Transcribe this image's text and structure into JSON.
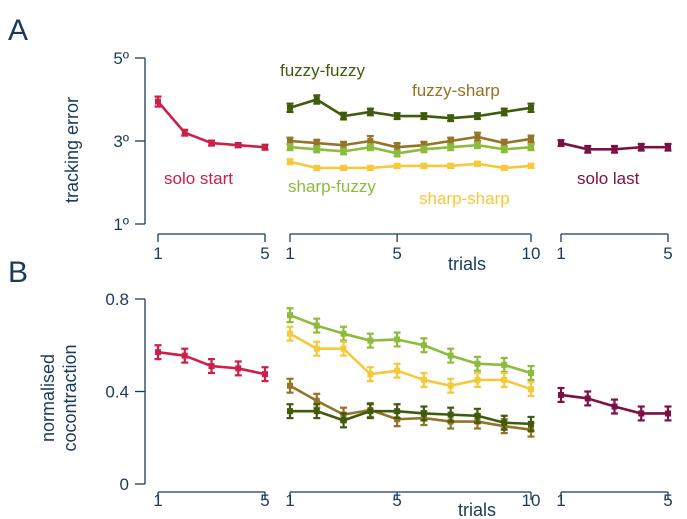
{
  "colors": {
    "axis": "#1b3a5c",
    "solo_start": "#cc1f4a",
    "fuzzy_fuzzy": "#3f5c0c",
    "fuzzy_sharp": "#957327",
    "sharp_fuzzy": "#8dbb3c",
    "sharp_sharp": "#f6c93a",
    "solo_last": "#7b1044"
  },
  "chart_data": [
    {
      "type": "line",
      "panel": "A",
      "ylabel": "tracking error",
      "xlabel": "trials",
      "ylim": [
        1,
        5
      ],
      "yticks": [
        "1º",
        "3º",
        "5º"
      ],
      "grid": false,
      "segments": [
        {
          "name": "solo start",
          "x": [
            1,
            2,
            3,
            4,
            5
          ],
          "xticks": [
            "1",
            "5"
          ],
          "series": [
            {
              "name": "solo start",
              "color_key": "solo_start",
              "values": [
                3.95,
                3.2,
                2.95,
                2.9,
                2.85
              ],
              "errors": [
                0.12,
                0.07,
                0.06,
                0.05,
                0.06
              ]
            }
          ]
        },
        {
          "name": "pairs",
          "x": [
            1,
            2,
            3,
            4,
            5,
            6,
            7,
            8,
            9,
            10
          ],
          "xticks": [
            "1",
            "5",
            "10"
          ],
          "series": [
            {
              "name": "fuzzy-fuzzy",
              "color_key": "fuzzy_fuzzy",
              "values": [
                3.8,
                4.0,
                3.6,
                3.7,
                3.6,
                3.6,
                3.55,
                3.6,
                3.7,
                3.8
              ],
              "errors": [
                0.1,
                0.1,
                0.08,
                0.08,
                0.07,
                0.07,
                0.07,
                0.07,
                0.08,
                0.1
              ]
            },
            {
              "name": "fuzzy-sharp",
              "color_key": "fuzzy_sharp",
              "values": [
                3.0,
                2.95,
                2.9,
                3.0,
                2.85,
                2.9,
                3.0,
                3.1,
                2.95,
                3.05
              ],
              "errors": [
                0.08,
                0.08,
                0.08,
                0.12,
                0.1,
                0.08,
                0.08,
                0.1,
                0.08,
                0.08
              ]
            },
            {
              "name": "sharp-fuzzy",
              "color_key": "sharp_fuzzy",
              "values": [
                2.85,
                2.8,
                2.75,
                2.85,
                2.7,
                2.8,
                2.85,
                2.9,
                2.8,
                2.85
              ],
              "errors": [
                0.07,
                0.07,
                0.07,
                0.07,
                0.07,
                0.07,
                0.07,
                0.07,
                0.07,
                0.07
              ]
            },
            {
              "name": "sharp-sharp",
              "color_key": "sharp_sharp",
              "values": [
                2.5,
                2.35,
                2.35,
                2.35,
                2.4,
                2.4,
                2.4,
                2.45,
                2.35,
                2.4
              ],
              "errors": [
                0.06,
                0.05,
                0.05,
                0.05,
                0.05,
                0.05,
                0.05,
                0.05,
                0.05,
                0.05
              ]
            }
          ]
        },
        {
          "name": "solo last",
          "x": [
            1,
            2,
            3,
            4,
            5
          ],
          "xticks": [
            "1",
            "5"
          ],
          "series": [
            {
              "name": "solo last",
              "color_key": "solo_last",
              "values": [
                2.95,
                2.8,
                2.8,
                2.85,
                2.85
              ],
              "errors": [
                0.07,
                0.08,
                0.08,
                0.08,
                0.08
              ]
            }
          ]
        }
      ],
      "labels": [
        {
          "text": "solo start",
          "color_key": "solo_start"
        },
        {
          "text": "fuzzy-fuzzy",
          "color_key": "fuzzy_fuzzy"
        },
        {
          "text": "fuzzy-sharp",
          "color_key": "fuzzy_sharp"
        },
        {
          "text": "sharp-fuzzy",
          "color_key": "sharp_fuzzy"
        },
        {
          "text": "sharp-sharp",
          "color_key": "sharp_sharp"
        },
        {
          "text": "solo last",
          "color_key": "solo_last"
        }
      ]
    },
    {
      "type": "line",
      "panel": "B",
      "ylabel": "normalised cocontraction",
      "xlabel": "trials",
      "ylim": [
        0,
        0.8
      ],
      "yticks": [
        "0",
        "0.4",
        "0.8"
      ],
      "grid": false,
      "segments": [
        {
          "name": "solo start",
          "x": [
            1,
            2,
            3,
            4,
            5
          ],
          "xticks": [
            "1",
            "5"
          ],
          "series": [
            {
              "name": "solo start",
              "color_key": "solo_start",
              "values": [
                0.57,
                0.555,
                0.51,
                0.5,
                0.475
              ],
              "errors": [
                0.03,
                0.03,
                0.03,
                0.03,
                0.03
              ]
            }
          ]
        },
        {
          "name": "pairs",
          "x": [
            1,
            2,
            3,
            4,
            5,
            6,
            7,
            8,
            9,
            10
          ],
          "xticks": [
            "1",
            "5",
            "10"
          ],
          "series": [
            {
              "name": "sharp-fuzzy",
              "color_key": "sharp_fuzzy",
              "values": [
                0.73,
                0.685,
                0.65,
                0.62,
                0.625,
                0.6,
                0.555,
                0.52,
                0.515,
                0.48
              ],
              "errors": [
                0.03,
                0.03,
                0.03,
                0.03,
                0.03,
                0.03,
                0.03,
                0.03,
                0.03,
                0.03
              ]
            },
            {
              "name": "sharp-sharp",
              "color_key": "sharp_sharp",
              "values": [
                0.65,
                0.585,
                0.585,
                0.475,
                0.49,
                0.45,
                0.425,
                0.45,
                0.45,
                0.41
              ],
              "errors": [
                0.03,
                0.03,
                0.03,
                0.03,
                0.03,
                0.03,
                0.03,
                0.03,
                0.03,
                0.03
              ]
            },
            {
              "name": "fuzzy-sharp",
              "color_key": "fuzzy_sharp",
              "values": [
                0.425,
                0.36,
                0.3,
                0.32,
                0.28,
                0.285,
                0.27,
                0.27,
                0.25,
                0.235
              ],
              "errors": [
                0.03,
                0.03,
                0.03,
                0.03,
                0.03,
                0.03,
                0.03,
                0.03,
                0.03,
                0.03
              ]
            },
            {
              "name": "fuzzy-fuzzy",
              "color_key": "fuzzy_fuzzy",
              "values": [
                0.315,
                0.315,
                0.275,
                0.315,
                0.315,
                0.305,
                0.3,
                0.295,
                0.265,
                0.26
              ],
              "errors": [
                0.03,
                0.03,
                0.03,
                0.03,
                0.03,
                0.03,
                0.03,
                0.03,
                0.03,
                0.03
              ]
            }
          ]
        },
        {
          "name": "solo last",
          "x": [
            1,
            2,
            3,
            4,
            5
          ],
          "xticks": [
            "1",
            "5"
          ],
          "series": [
            {
              "name": "solo last",
              "color_key": "solo_last",
              "values": [
                0.385,
                0.37,
                0.335,
                0.305,
                0.305
              ],
              "errors": [
                0.03,
                0.03,
                0.03,
                0.03,
                0.03
              ]
            }
          ]
        }
      ]
    }
  ]
}
